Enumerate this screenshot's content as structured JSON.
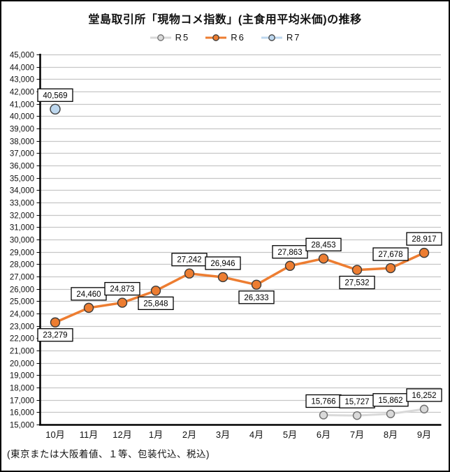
{
  "page": {
    "title": "堂島取引所「現物コメ指数」(主食用平均米価)の推移",
    "footnote": "(東京または大阪着値、１等、包装代込、税込)"
  },
  "colors": {
    "grid": "#c6c6c6",
    "axis": "#000000",
    "label_box_fill": "#ffffff",
    "label_box_border": "#000000"
  },
  "chart_data": {
    "type": "line",
    "title": "堂島取引所「現物コメ指数」(主食用平均米価)の推移",
    "xlabel": "",
    "ylabel": "",
    "categories": [
      "10月",
      "11月",
      "12月",
      "1月",
      "2月",
      "3月",
      "4月",
      "5月",
      "6月",
      "7月",
      "8月",
      "9月"
    ],
    "ylim": [
      15000,
      45000
    ],
    "ytick_step": 1000,
    "grid": true,
    "legend_position": "top",
    "series": [
      {
        "name": "R5",
        "line_color": "#d9d9d9",
        "marker_fill": "#d9d9d9",
        "marker_stroke": "#6f6f6f",
        "marker_radius": 5.5,
        "line_width": 3,
        "values": [
          null,
          null,
          null,
          null,
          null,
          null,
          null,
          null,
          15766,
          15727,
          15862,
          16252
        ],
        "label_pos": [
          null,
          null,
          null,
          null,
          null,
          null,
          null,
          null,
          "above",
          "above",
          "above",
          "above"
        ]
      },
      {
        "name": "R6",
        "line_color": "#ed7d31",
        "marker_fill": "#ed7d31",
        "marker_stroke": "#3a3a3a",
        "marker_radius": 6.5,
        "line_width": 3.5,
        "values": [
          23279,
          24460,
          24873,
          25848,
          27242,
          26946,
          26333,
          27863,
          28453,
          27532,
          27678,
          28917
        ],
        "label_pos": [
          "below",
          "above",
          "above",
          "below",
          "above",
          "above",
          "below",
          "above",
          "above",
          "below",
          "above",
          "above"
        ]
      },
      {
        "name": "R7",
        "line_color": "#bdd7ee",
        "marker_fill": "#bdd7ee",
        "marker_stroke": "#404040",
        "marker_radius": 7,
        "line_width": 3,
        "values": [
          40569,
          null,
          null,
          null,
          null,
          null,
          null,
          null,
          null,
          null,
          null,
          null
        ],
        "label_pos": [
          "above",
          null,
          null,
          null,
          null,
          null,
          null,
          null,
          null,
          null,
          null,
          null
        ]
      }
    ]
  }
}
